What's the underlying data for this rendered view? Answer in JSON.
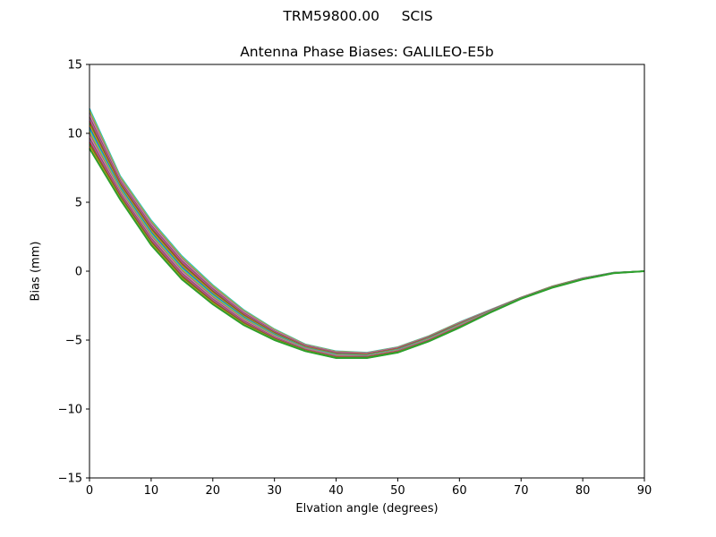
{
  "chart_data": {
    "type": "line",
    "suptitle": "TRM59800.00     SCIS",
    "title": "Antenna Phase Biases: GALILEO-E5b",
    "xlabel": "Elvation angle (degrees)",
    "ylabel": "Bias (mm)",
    "xlim": [
      0,
      90
    ],
    "ylim": [
      -15,
      15
    ],
    "xticks": [
      0,
      10,
      20,
      30,
      40,
      50,
      60,
      70,
      80,
      90
    ],
    "yticks": [
      15,
      10,
      5,
      0,
      -5,
      -10,
      -15
    ],
    "ytick_labels": [
      "15",
      "10",
      "5",
      "0",
      "−5",
      "−10",
      "−15"
    ],
    "grid": false,
    "legend": null,
    "x": [
      0,
      5,
      10,
      15,
      20,
      25,
      30,
      35,
      40,
      45,
      50,
      55,
      60,
      65,
      70,
      75,
      80,
      85,
      90
    ],
    "envelope_upper": [
      11.8,
      6.9,
      3.7,
      1.1,
      -1.0,
      -2.8,
      -4.2,
      -5.3,
      -5.8,
      -5.9,
      -5.5,
      -4.7,
      -3.7,
      -2.8,
      -1.9,
      -1.1,
      -0.5,
      -0.1,
      0.0
    ],
    "envelope_lower": [
      8.9,
      5.2,
      1.9,
      -0.6,
      -2.4,
      -3.9,
      -5.0,
      -5.8,
      -6.3,
      -6.3,
      -5.9,
      -5.1,
      -4.1,
      -3.0,
      -2.0,
      -1.2,
      -0.6,
      -0.15,
      0.0
    ],
    "series_count": 20,
    "series_colors": [
      "#1f77b4",
      "#ff7f0e",
      "#2ca02c",
      "#d62728",
      "#9467bd",
      "#8c564b",
      "#e377c2",
      "#7f7f7f",
      "#bcbd22",
      "#17becf"
    ],
    "note": "Many overlapping per-azimuth curves forming a band; values interpolated between envelope_lower and envelope_upper"
  }
}
